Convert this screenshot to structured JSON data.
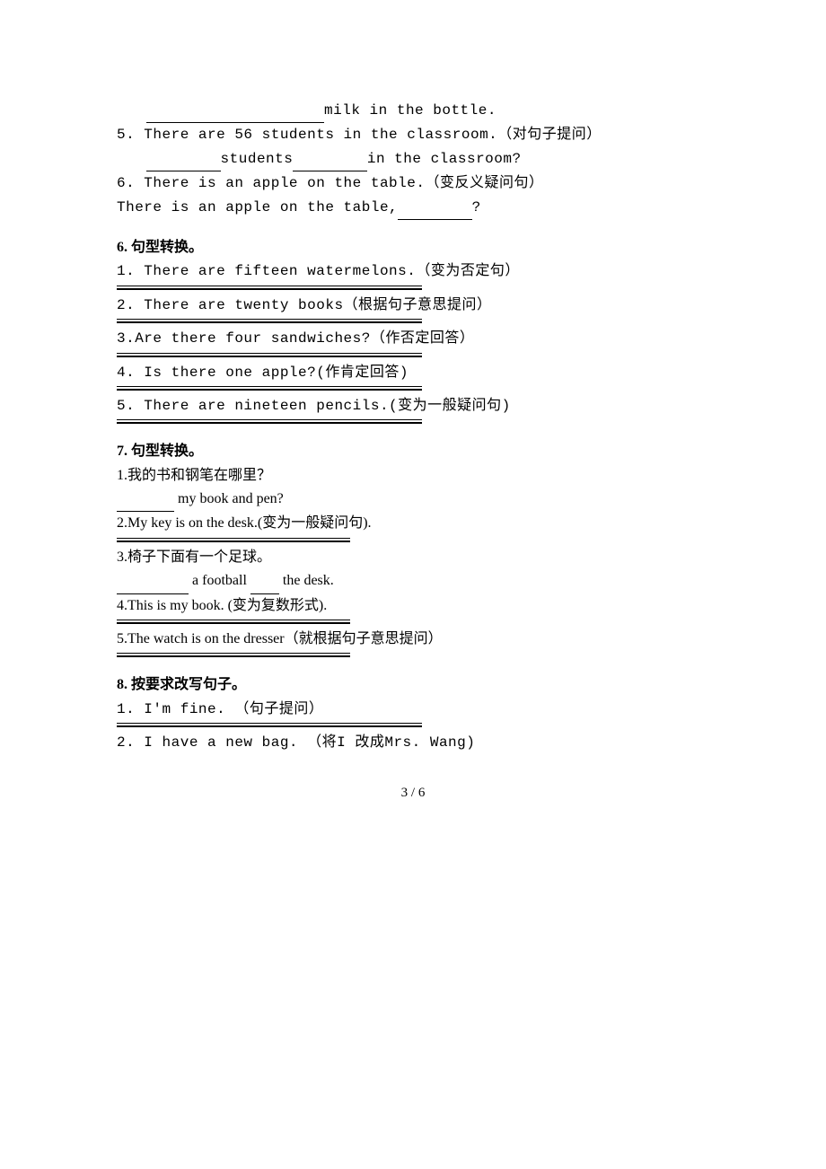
{
  "top": {
    "l1_a": "　　",
    "l1_blank": "　　　　　　　　　　　　",
    "l1_b": "milk in the bottle.",
    "l2": "5. There are 56 students in the classroom.（对句子提问）",
    "l3_a": "　　",
    "l3_blank1": "　　　　　",
    "l3_b": "students",
    "l3_blank2": "　　　　　",
    "l3_c": "in the classroom?",
    "l4": "6. There is an apple on the table.（变反义疑问句）",
    "l5_a": "There is an apple on the table,",
    "l5_blank": "　　　　　",
    "l5_b": "?"
  },
  "s6": {
    "heading": "6. 句型转换。",
    "q1": "1. There are fifteen watermelons.（变为否定句）",
    "q2": "2. There are twenty books（根据句子意思提问）",
    "q3": "3.Are there four sandwiches?（作否定回答）",
    "q4": "4. Is there one apple?(作肯定回答)",
    "q5": "5. There are nineteen pencils.(变为一般疑问句)"
  },
  "s7": {
    "heading": "7. 句型转换。",
    "q1": "1.我的书和钢笔在哪里？",
    "q1b_blank": "　　　　",
    "q1b_text": " my book and pen?",
    "q2": "2.My key is on the desk.(变为一般疑问句).",
    "q3": "3.椅子下面有一个足球。",
    "q3b_blank1": "　　　　　",
    "q3b_mid": " a football ",
    "q3b_blank2": "　　",
    "q3b_end": " the desk.",
    "q4": "4.This is my book. (变为复数形式).",
    "q5": "5.The watch is on the dresser（就根据句子意思提问）"
  },
  "s8": {
    "heading": "8. 按要求改写句子。",
    "q1": "1. I'm fine. （句子提问）",
    "q2": "2. I have a new bag. （将I 改成Mrs. Wang)"
  },
  "pagenum": "3 / 6"
}
